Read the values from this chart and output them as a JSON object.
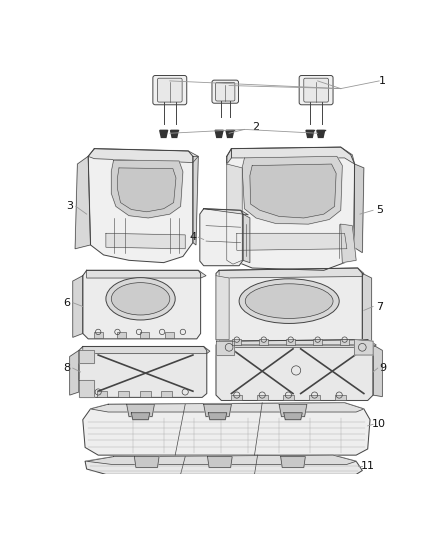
{
  "bg_color": "#ffffff",
  "line_color": "#444444",
  "label_color": "#111111",
  "leader_color": "#999999",
  "figsize": [
    4.38,
    5.33
  ],
  "dpi": 100
}
